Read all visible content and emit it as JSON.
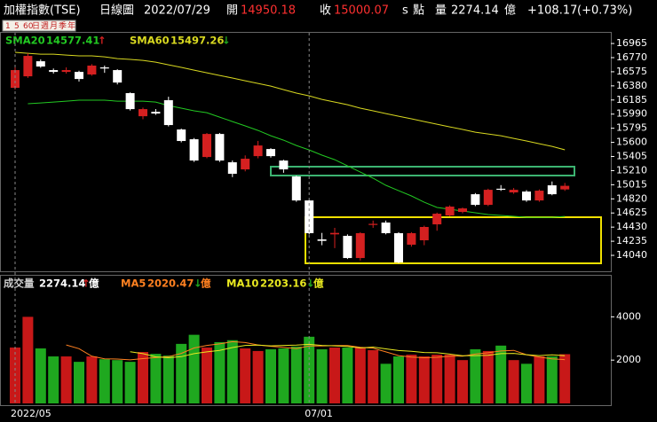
{
  "header": {
    "title": "加權指數(TSE)",
    "period": "日線圖",
    "date": "2022/07/29",
    "open_label": "開",
    "open": "14950.18",
    "close_label": "收",
    "close": "15000.07",
    "unit_s": "s",
    "unit": "點",
    "volume_label": "量",
    "volume": "2274.14",
    "volume_unit": "億",
    "change": "+108.17",
    "change_pct": "(+0.73%)"
  },
  "toolbar": [
    "1",
    "5",
    "60",
    "日",
    "週",
    "月",
    "季",
    "年"
  ],
  "up_color": "#d42020",
  "down_color": "#ffffff",
  "volume_up_color": "#c81818",
  "volume_down_color": "#1fa81f",
  "chart_data": [
    {
      "type": "candlestick",
      "open": [
        16353,
        16512,
        16720,
        16598,
        16573,
        16573,
        16537,
        16635,
        16598,
        16280,
        15961,
        16022,
        16182,
        15778,
        15643,
        15398,
        15716,
        15325,
        15227,
        15410,
        15508,
        15349,
        15129,
        14798,
        14260,
        14330,
        14309,
        14003,
        14460,
        14493,
        14346,
        14187,
        14248,
        14468,
        14590,
        14640,
        14884,
        14737,
        14960,
        14909,
        14921,
        14798,
        15007,
        14950.18
      ],
      "high": [
        16640,
        16830,
        16745,
        16620,
        16635,
        16590,
        16680,
        16660,
        16610,
        16290,
        16080,
        16060,
        16230,
        15790,
        15660,
        15730,
        15730,
        15350,
        15420,
        15620,
        15520,
        15360,
        15140,
        14810,
        14350,
        14420,
        14330,
        14360,
        14520,
        14520,
        14360,
        14360,
        14450,
        14630,
        14730,
        14700,
        14900,
        14960,
        15010,
        14970,
        14940,
        14950,
        15060,
        15040
      ],
      "low": [
        16330,
        16490,
        16630,
        16550,
        16550,
        16440,
        16520,
        16560,
        16400,
        16040,
        15920,
        15980,
        15820,
        15600,
        15330,
        15380,
        15330,
        15120,
        15200,
        15380,
        15390,
        15180,
        14780,
        14330,
        14180,
        14140,
        13990,
        13970,
        14420,
        14330,
        13930,
        14160,
        14180,
        14380,
        14580,
        14620,
        14720,
        14720,
        14930,
        14890,
        14780,
        14780,
        14870,
        14930
      ],
      "close": [
        16598,
        16794,
        16647,
        16573,
        16598,
        16475,
        16660,
        16620,
        16426,
        16059,
        16059,
        15998,
        15839,
        15619,
        15349,
        15716,
        15349,
        15166,
        15374,
        15557,
        15410,
        15227,
        14798,
        14346,
        14240,
        14350,
        14003,
        14346,
        14475,
        14346,
        13942,
        14346,
        14432,
        14615,
        14713,
        14688,
        14737,
        14945,
        14945,
        14945,
        14798,
        14933,
        14884,
        15000.07
      ],
      "series": [
        {
          "name": "SMA20",
          "color": "#22c822",
          "last": 14577.41,
          "arrow": "↑",
          "values": [
            null,
            16133,
            16145,
            16157,
            16169,
            16182,
            16182,
            16182,
            16169,
            16169,
            16169,
            16157,
            16108,
            16072,
            16035,
            16010,
            15949,
            15888,
            15827,
            15765,
            15692,
            15631,
            15557,
            15496,
            15423,
            15361,
            15276,
            15190,
            15105,
            15007,
            14933,
            14860,
            14774,
            14701,
            14677,
            14652,
            14628,
            14603,
            14591,
            14579,
            14566,
            14566,
            14566,
            14577.41
          ]
        },
        {
          "name": "SMA60",
          "color": "#d8d820",
          "last": 15497.26,
          "arrow": "↓",
          "values": [
            16843,
            16830,
            16818,
            16818,
            16806,
            16794,
            16794,
            16781,
            16757,
            16745,
            16732,
            16708,
            16671,
            16635,
            16598,
            16561,
            16524,
            16488,
            16451,
            16414,
            16377,
            16328,
            16280,
            16243,
            16194,
            16157,
            16120,
            16072,
            16035,
            15998,
            15961,
            15925,
            15888,
            15851,
            15814,
            15778,
            15741,
            15716,
            15692,
            15655,
            15619,
            15582,
            15545,
            15497.26
          ]
        }
      ],
      "ylim": [
        13820,
        17125
      ],
      "yticks": [
        16965,
        16770,
        16575,
        16380,
        16185,
        15990,
        15795,
        15600,
        15405,
        15210,
        15015,
        14820,
        14625,
        14430,
        14235,
        14040
      ]
    },
    {
      "type": "bar",
      "name": "成交量",
      "last": 2274.14,
      "arrow": "↑",
      "unit": "億",
      "categories": [
        "2022/05",
        null,
        null,
        null,
        null,
        null,
        null,
        null,
        null,
        null,
        null,
        null,
        null,
        null,
        null,
        null,
        null,
        null,
        null,
        null,
        null,
        null,
        null,
        "07/01",
        null,
        null,
        null,
        null,
        null,
        null,
        null,
        null,
        null,
        null,
        null,
        null,
        null,
        null,
        null,
        null,
        null,
        null,
        null,
        null
      ],
      "values": [
        2580,
        4000,
        2540,
        2170,
        2170,
        1920,
        2170,
        2040,
        2000,
        1920,
        2375,
        2290,
        2210,
        2750,
        3170,
        2580,
        2830,
        2920,
        2540,
        2420,
        2500,
        2540,
        2625,
        3080,
        2500,
        2580,
        2580,
        2580,
        2460,
        1830,
        2170,
        2250,
        2170,
        2250,
        2250,
        2000,
        2500,
        2420,
        2670,
        2000,
        1830,
        2170,
        2170,
        2274.14
      ],
      "series": [
        {
          "name": "MA5",
          "color": "#ff8020",
          "last": 2020.47,
          "arrow": "↓",
          "values": [
            null,
            null,
            null,
            null,
            2700,
            2530,
            2180,
            2060,
            2050,
            2010,
            2070,
            2120,
            2160,
            2310,
            2560,
            2680,
            2750,
            2850,
            2810,
            2700,
            2640,
            2590,
            2530,
            2650,
            2650,
            2670,
            2670,
            2590,
            2550,
            2380,
            2210,
            2140,
            2110,
            2130,
            2180,
            2180,
            2280,
            2340,
            2420,
            2450,
            2250,
            2140,
            2060,
            2020.47
          ]
        },
        {
          "name": "MA10",
          "color": "#e8e820",
          "last": 2203.16,
          "arrow": "↓",
          "values": [
            null,
            null,
            null,
            null,
            null,
            null,
            null,
            null,
            null,
            2390,
            2300,
            2150,
            2110,
            2160,
            2300,
            2380,
            2450,
            2580,
            2680,
            2690,
            2660,
            2680,
            2690,
            2730,
            2680,
            2660,
            2630,
            2560,
            2600,
            2520,
            2440,
            2410,
            2350,
            2340,
            2280,
            2200,
            2210,
            2220,
            2300,
            2310,
            2250,
            2210,
            2240,
            2203.16
          ]
        }
      ],
      "ylim": [
        0,
        5900
      ],
      "yticks": [
        2000,
        4000
      ]
    }
  ]
}
